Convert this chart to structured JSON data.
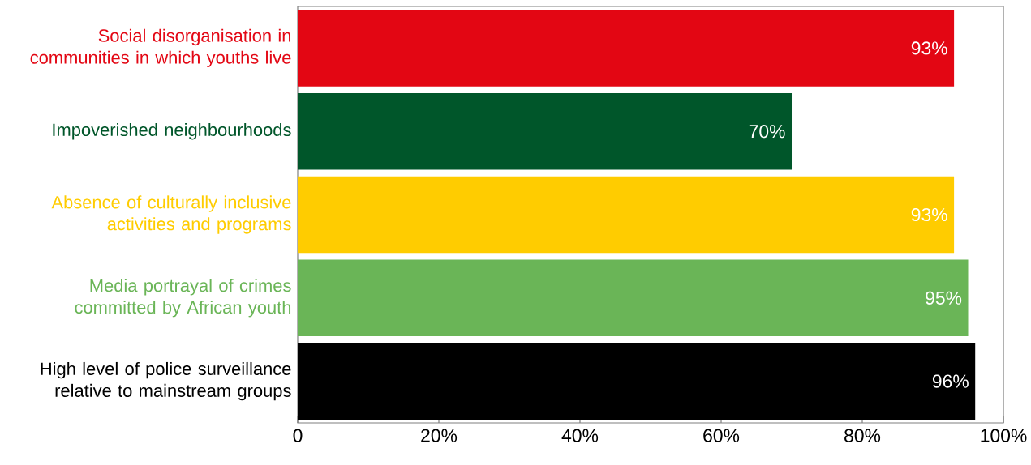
{
  "chart_data": {
    "type": "bar",
    "orientation": "horizontal",
    "categories": [
      "Social disorganisation in communities in which youths live",
      "Impoverished neighbourhoods",
      "Absence of culturally inclusive activities and programs",
      "Media portrayal of crimes committed by African youth",
      "High level of police surveillance relative to mainstream groups"
    ],
    "values": [
      93,
      70,
      93,
      95,
      96
    ],
    "value_labels": [
      "93%",
      "70%",
      "93%",
      "95%",
      "96%"
    ],
    "colors": [
      "#e30613",
      "#00562a",
      "#ffcc00",
      "#6ab557",
      "#000000"
    ],
    "xlim": [
      0,
      100
    ],
    "xticks": [
      0,
      {
        "value": 20,
        "label": "20%"
      },
      {
        "value": 40,
        "label": "40%"
      },
      {
        "value": 60,
        "label": "60%"
      },
      {
        "value": 80,
        "label": "80%"
      },
      {
        "value": 100,
        "label": "100%"
      }
    ],
    "grid": false
  }
}
